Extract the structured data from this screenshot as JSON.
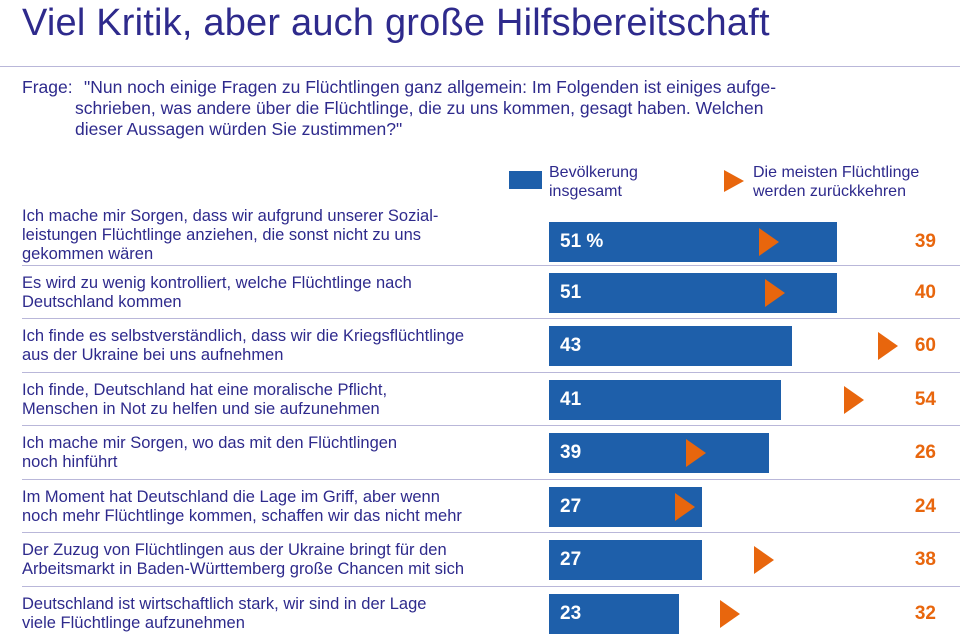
{
  "title": "Viel Kritik, aber auch große Hilfsbereitschaft",
  "question": {
    "label": "Frage:",
    "line1": "\"Nun noch einige Fragen zu Flüchtlingen ganz allgemein: Im Folgenden ist einiges aufge-",
    "line2": "schrieben, was andere über die Flüchtlinge, die zu uns kommen, gesagt haben. Welchen",
    "line3": "dieser Aussagen würden Sie zustimmen?\""
  },
  "legend": {
    "bar_label": "Bevölkerung insgesamt",
    "marker_label": "Die meisten Flüchtlinge werden zurückkehren"
  },
  "colors": {
    "bar": "#1e5faa",
    "marker": "#e8660d",
    "text": "#2e2a8c"
  },
  "chart_data": {
    "type": "bar",
    "orientation": "horizontal",
    "unit": "%",
    "categories": [
      [
        "Ich mache mir Sorgen, dass wir aufgrund unserer Sozial-",
        "leistungen Flüchtlinge anziehen, die sonst nicht zu uns",
        "gekommen wären"
      ],
      [
        "Es wird zu wenig kontrolliert, welche Flüchtlinge nach",
        "Deutschland kommen"
      ],
      [
        "Ich finde es selbstverständlich, dass wir die Kriegsflüchtlinge",
        "aus der Ukraine bei uns aufnehmen"
      ],
      [
        "Ich finde, Deutschland hat eine moralische Pflicht,",
        "Menschen in Not zu helfen und sie aufzunehmen"
      ],
      [
        "Ich mache mir Sorgen, wo das mit den Flüchtlingen",
        "noch hinführt"
      ],
      [
        "Im Moment hat Deutschland die Lage im Griff, aber wenn",
        "noch mehr Flüchtlinge kommen, schaffen wir das nicht mehr"
      ],
      [
        "Der Zuzug von Flüchtlingen aus der Ukraine bringt für den",
        "Arbeitsmarkt in Baden-Württemberg große Chancen mit sich"
      ],
      [
        "Deutschland ist wirtschaftlich stark, wir sind in der Lage",
        "viele Flüchtlinge aufzunehmen"
      ]
    ],
    "series": [
      {
        "name": "Bevölkerung insgesamt",
        "values": [
          51,
          51,
          43,
          41,
          39,
          27,
          27,
          23
        ],
        "value_labels": [
          "51 %",
          "51",
          "43",
          "41",
          "39",
          "27",
          "27",
          "23"
        ]
      },
      {
        "name": "Die meisten Flüchtlinge werden zurückkehren",
        "values": [
          39,
          40,
          60,
          54,
          26,
          24,
          38,
          32
        ],
        "value_labels": [
          "39",
          "40",
          "60",
          "54",
          "26",
          "24",
          "38",
          "32"
        ]
      }
    ],
    "xlim": [
      0,
      100
    ],
    "grid": false,
    "legend_position": "top-right"
  }
}
